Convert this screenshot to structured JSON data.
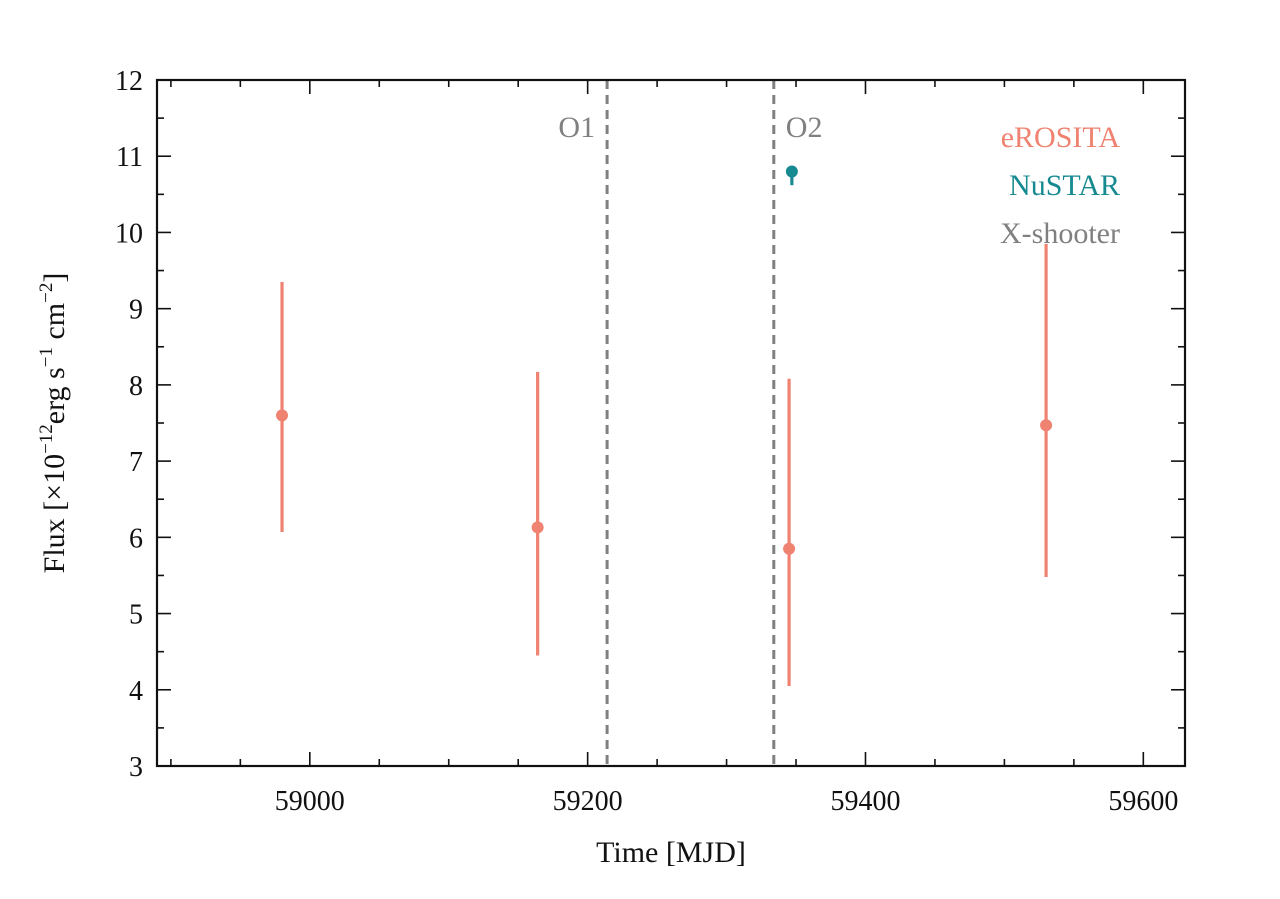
{
  "chart_data": {
    "type": "scatter",
    "title": "",
    "xlabel": "Time [MJD]",
    "ylabel": {
      "prefix": "Flux [×10",
      "exp1": "−12",
      "mid1": "erg s",
      "exp2": "−1",
      "mid2": " cm",
      "exp3": "−2",
      "suffix": "]"
    },
    "xlim": [
      58890,
      59630
    ],
    "ylim": [
      3,
      12
    ],
    "x_ticks": [
      59000,
      59200,
      59400,
      59600
    ],
    "y_ticks": [
      3,
      4,
      5,
      6,
      7,
      8,
      9,
      10,
      11,
      12
    ],
    "x_minor_step": 50,
    "y_minor_step": 0.5,
    "grid": false,
    "legend_position": "top-right",
    "legend": [
      {
        "name": "eROSITA",
        "color": "#ef8270"
      },
      {
        "name": "NuSTAR",
        "color": "#178a91"
      },
      {
        "name": "X-shooter",
        "color": "#808080"
      }
    ],
    "vertical_lines": [
      {
        "label": "O1",
        "x": 59214,
        "color": "#808080",
        "label_side": "left"
      },
      {
        "label": "O2",
        "x": 59334,
        "color": "#808080",
        "label_side": "right"
      }
    ],
    "series": [
      {
        "name": "eROSITA",
        "color": "#ef8270",
        "points": [
          {
            "x": 58980,
            "y": 7.6,
            "ylow": 6.07,
            "yhigh": 9.35
          },
          {
            "x": 59164,
            "y": 6.13,
            "ylow": 4.45,
            "yhigh": 8.17
          },
          {
            "x": 59345,
            "y": 5.85,
            "ylow": 4.05,
            "yhigh": 8.08
          },
          {
            "x": 59530,
            "y": 7.47,
            "ylow": 5.48,
            "yhigh": 9.85
          }
        ]
      },
      {
        "name": "NuSTAR",
        "color": "#178a91",
        "points": [
          {
            "x": 59347,
            "y": 10.8,
            "ylow": 10.62,
            "yhigh": 10.87
          }
        ]
      }
    ]
  }
}
